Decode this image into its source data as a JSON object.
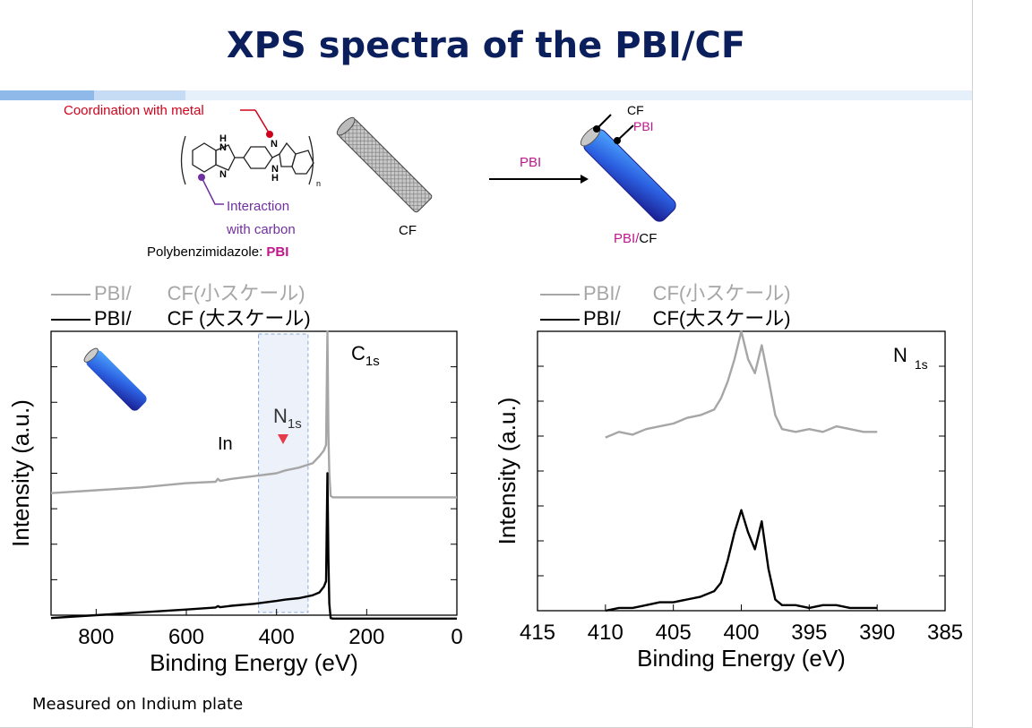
{
  "slide": {
    "title": "XPS spectra of the PBI/CF",
    "footnote": "Measured on Indium plate"
  },
  "scheme": {
    "coordination_label": "Coordination with metal",
    "interaction_label_1": "Interaction",
    "interaction_label_2": "with carbon",
    "polymer_name": "Polybenzimidazole: ",
    "polymer_abbr": "PBI",
    "cf_label": "CF",
    "arrow_label": "PBI",
    "product_cf": "CF",
    "product_pbi": "PBI",
    "product_label_pbi": "PBI",
    "product_label_slash": "/",
    "product_label_cf": "CF",
    "struct_h1": "H",
    "struct_n1": "N",
    "struct_h2": "H",
    "struct_n2": "N",
    "struct_n3": "N",
    "struct_h3": "H",
    "struct_n4": "N",
    "struct_sub": "n"
  },
  "colors": {
    "title": "#0b1f5c",
    "coordination": "#d0021b",
    "interaction": "#7030a0",
    "pbi": "#c0168c",
    "small_scale": "#a6a6a6",
    "large_scale": "#000000",
    "highlight": "#dce6f5"
  },
  "chart_data": [
    {
      "type": "line",
      "legend": [
        {
          "line_label": "PBI/",
          "label": "CF(小スケール)",
          "color": "#a6a6a6"
        },
        {
          "line_label": "PBI/",
          "label": "CF (大スケール)",
          "color": "#000000"
        }
      ],
      "legend_position": "top-left",
      "xlabel": "Binding Energy (eV)",
      "ylabel": "Intensity (a.u.)",
      "xlim": [
        900,
        0
      ],
      "x_ticks": [
        "800",
        "600",
        "400",
        "200",
        "0"
      ],
      "annotations": {
        "peak_main": "C",
        "peak_main_sub": "1s",
        "peak_minor": "N",
        "peak_minor_sub": "1s",
        "peak_in": "In"
      },
      "highlight_range": [
        440,
        330
      ],
      "series": [
        {
          "x": [
            900,
            800,
            700,
            600,
            535,
            530,
            525,
            500,
            450,
            400,
            380,
            350,
            320,
            305,
            295,
            290,
            287,
            285,
            283,
            280,
            275,
            250,
            200,
            100,
            0
          ],
          "y": [
            0.43,
            0.44,
            0.45,
            0.465,
            0.47,
            0.48,
            0.473,
            0.48,
            0.49,
            0.5,
            0.51,
            0.52,
            0.535,
            0.56,
            0.58,
            0.6,
            1.0,
            0.64,
            0.5,
            0.42,
            0.415,
            0.415,
            0.415,
            0.415,
            0.415
          ]
        },
        {
          "x": [
            900,
            800,
            700,
            600,
            535,
            530,
            525,
            500,
            450,
            400,
            380,
            350,
            320,
            305,
            295,
            290,
            287,
            285,
            283,
            280,
            275,
            250,
            200,
            100,
            0
          ],
          "y": [
            -0.01,
            0.0,
            0.01,
            0.02,
            0.027,
            0.032,
            0.028,
            0.033,
            0.04,
            0.05,
            0.055,
            0.06,
            0.07,
            0.08,
            0.1,
            0.12,
            0.5,
            0.2,
            0.04,
            -0.01,
            -0.012,
            -0.012,
            -0.012,
            -0.012,
            -0.012
          ]
        }
      ]
    },
    {
      "type": "line",
      "legend": [
        {
          "line_label": "PBI/",
          "label": "CF(小スケール)",
          "color": "#a6a6a6"
        },
        {
          "line_label": "PBI/",
          "label": "CF(大スケール)",
          "color": "#000000"
        }
      ],
      "legend_position": "top-left",
      "xlabel": "Binding Energy (eV)",
      "ylabel": "Intensity (a.u.)",
      "xlim": [
        415,
        385
      ],
      "x_ticks": [
        "415",
        "410",
        "405",
        "400",
        "395",
        "390",
        "385"
      ],
      "annotations": {
        "peak_main": "N",
        "peak_main_sub": "1s"
      },
      "series": [
        {
          "x": [
            410,
            409,
            408,
            407,
            406,
            405,
            404,
            403,
            402,
            401.5,
            401,
            400.5,
            400,
            399.5,
            399,
            398.5,
            398,
            397.5,
            397,
            396,
            395,
            394,
            393,
            392,
            391,
            390
          ],
          "y": [
            0.62,
            0.64,
            0.63,
            0.65,
            0.66,
            0.67,
            0.69,
            0.7,
            0.72,
            0.76,
            0.82,
            0.9,
            1.0,
            0.9,
            0.85,
            0.95,
            0.83,
            0.7,
            0.65,
            0.64,
            0.65,
            0.64,
            0.66,
            0.65,
            0.64,
            0.64
          ]
        },
        {
          "x": [
            410,
            409,
            408,
            407,
            406,
            405,
            404,
            403,
            402,
            401.5,
            401,
            400.5,
            400,
            399.5,
            399,
            398.5,
            398,
            397.5,
            397,
            396,
            395,
            394,
            393,
            392,
            391,
            390
          ],
          "y": [
            0.0,
            0.01,
            0.01,
            0.02,
            0.03,
            0.03,
            0.04,
            0.05,
            0.07,
            0.1,
            0.18,
            0.28,
            0.36,
            0.28,
            0.22,
            0.32,
            0.15,
            0.04,
            0.02,
            0.02,
            0.01,
            0.02,
            0.02,
            0.01,
            0.01,
            0.01
          ]
        }
      ]
    }
  ]
}
